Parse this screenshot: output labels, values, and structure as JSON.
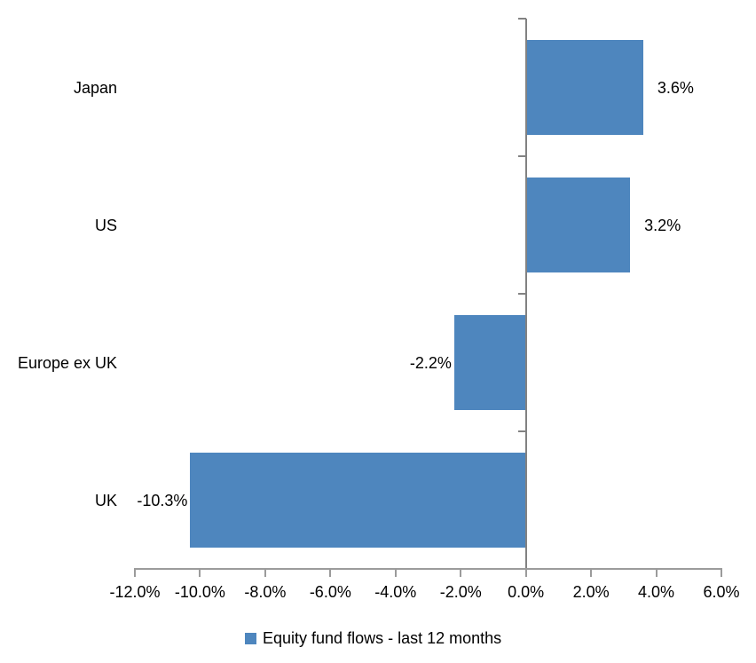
{
  "chart_data": {
    "type": "bar",
    "orientation": "horizontal",
    "title": "",
    "categories": [
      "Japan",
      "US",
      "Europe ex UK",
      "UK"
    ],
    "series": [
      {
        "name": "Equity fund flows - last 12 months",
        "values": [
          3.6,
          3.2,
          -2.2,
          -10.3
        ],
        "data_labels": [
          "3.6%",
          "3.2%",
          "-2.2%",
          "-10.3%"
        ],
        "color": "#4E86BE"
      }
    ],
    "xlim": [
      -12,
      6
    ],
    "x_ticks": [
      -12,
      -10,
      -8,
      -6,
      -4,
      -2,
      0,
      2,
      4,
      6
    ],
    "x_tick_labels": [
      "-12.0%",
      "-10.0%",
      "-8.0%",
      "-6.0%",
      "-4.0%",
      "-2.0%",
      "0.0%",
      "2.0%",
      "4.0%",
      "6.0%"
    ],
    "grid": false,
    "legend_position": "bottom-center",
    "axis_color": "#828282",
    "value_axis_color": "#9B9B9B",
    "text_color": "#000000",
    "background_color": "#FFFFFF"
  }
}
